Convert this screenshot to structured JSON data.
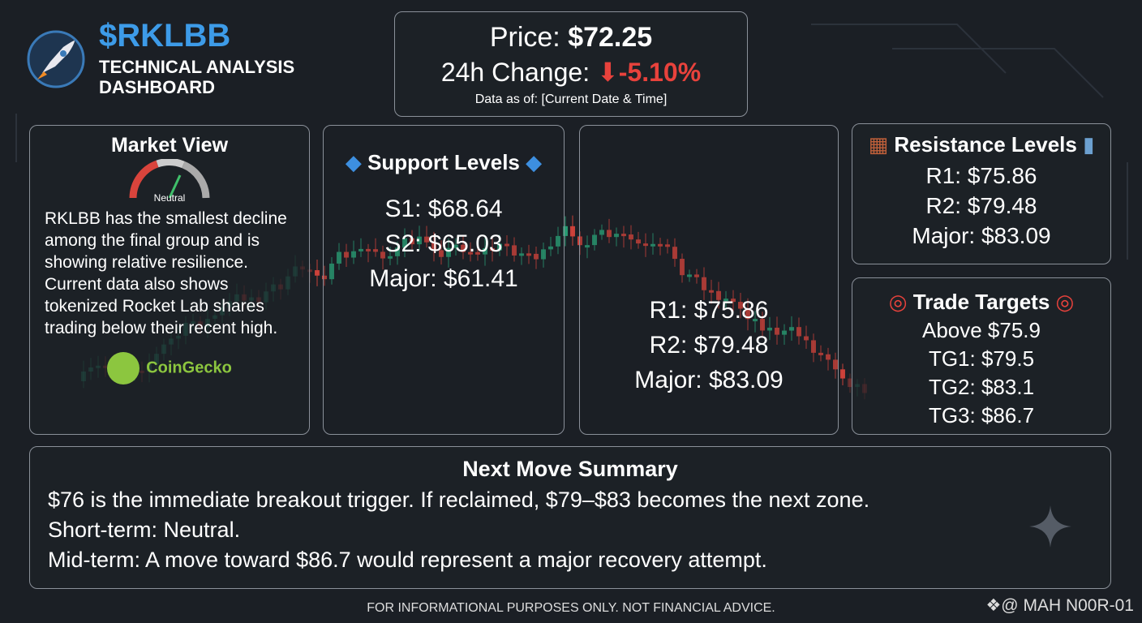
{
  "header": {
    "ticker": "$RKLBB",
    "subtitle": "TECHNICAL ANALYSIS DASHBOARD"
  },
  "price": {
    "label": "Price:",
    "value": "$72.25",
    "change_label": "24h Change:",
    "change_value": "-5.10%",
    "as_of": "Data as of: [Current Date & Time]"
  },
  "market_view": {
    "title": "Market View",
    "gauge_label": "Neutral",
    "text": "RKLBB has the smallest decline among the final group and is showing relative resilience. Current data also shows tokenized Rocket Lab shares trading below their recent high.",
    "source": "CoinGecko"
  },
  "support": {
    "title": "Support Levels",
    "levels": [
      "S1: $68.64",
      "S2: $65.03",
      "Major: $61.41"
    ]
  },
  "chart_panel": {
    "levels": [
      "R1: $75.86",
      "R2: $79.48",
      "Major: $83.09"
    ]
  },
  "resistance": {
    "title": "Resistance Levels",
    "levels": [
      "R1: $75.86",
      "R2: $79.48",
      "Major: $83.09"
    ]
  },
  "targets": {
    "title": "Trade Targets",
    "items": [
      "Above $75.9",
      "TG1: $79.5",
      "TG2: $83.1",
      "TG3: $86.7"
    ]
  },
  "summary": {
    "title": "Next Move Summary",
    "lines": [
      "$76 is the immediate breakout trigger. If reclaimed, $79–$83 becomes the next zone.",
      "Short-term: Neutral.",
      "Mid-term: A move toward $86.7 would represent a major recovery attempt."
    ]
  },
  "footer": {
    "disclaimer": "FOR INFORMATIONAL PURPOSES ONLY. NOT FINANCIAL ADVICE.",
    "handle": "@ MAH N00R-01"
  }
}
